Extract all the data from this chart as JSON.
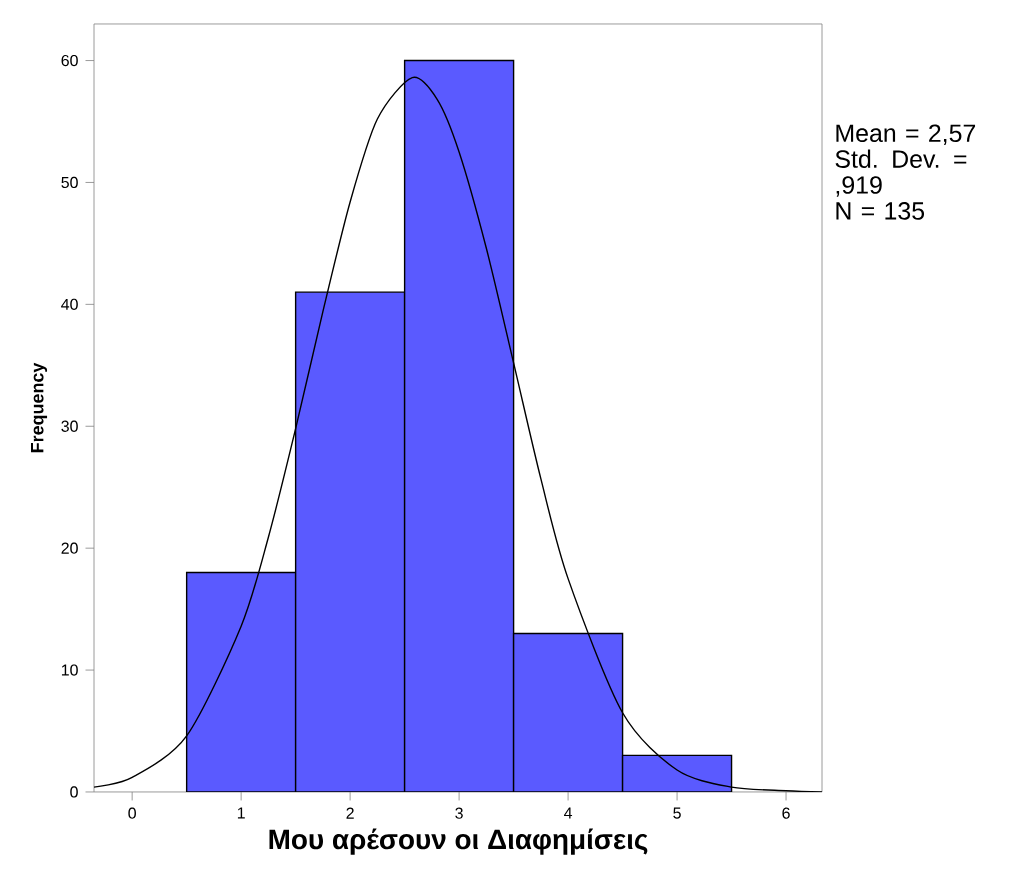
{
  "chart_data": {
    "type": "histogram",
    "xlabel": "Μου αρέσουν οι Διαφημίσεις",
    "ylabel": "Frequency",
    "bins": [
      0.5,
      1.5,
      2.5,
      3.5,
      4.5,
      5.5
    ],
    "values": [
      18,
      41,
      60,
      13,
      3
    ],
    "color": "#5a5aff",
    "series": [
      {
        "type": "line",
        "color": "#000000",
        "x": [
          -0.35,
          0,
          0.5,
          1,
          1.25,
          1.5,
          1.75,
          2,
          2.25,
          2.57,
          2.8,
          3,
          3.25,
          3.5,
          3.75,
          4,
          4.5,
          5,
          5.5,
          6,
          6.33
        ],
        "values": [
          0.4,
          1.2,
          4.6,
          13.6,
          20.9,
          29.8,
          39.4,
          48.4,
          55.2,
          58.6,
          56.8,
          52.5,
          44.6,
          35.2,
          25.7,
          17.5,
          6.5,
          1.8,
          0.4,
          0.1,
          0
        ]
      }
    ],
    "xlim": [
      -0.35,
      6.33
    ],
    "ylim": [
      0,
      63
    ],
    "xticks": [
      0,
      1,
      2,
      3,
      4,
      5,
      6
    ],
    "yticks": [
      0,
      10,
      20,
      30,
      40,
      50,
      60
    ],
    "annotations": [
      "Mean = 2,57",
      "Std. Dev. = ,919",
      "N = 135"
    ]
  }
}
